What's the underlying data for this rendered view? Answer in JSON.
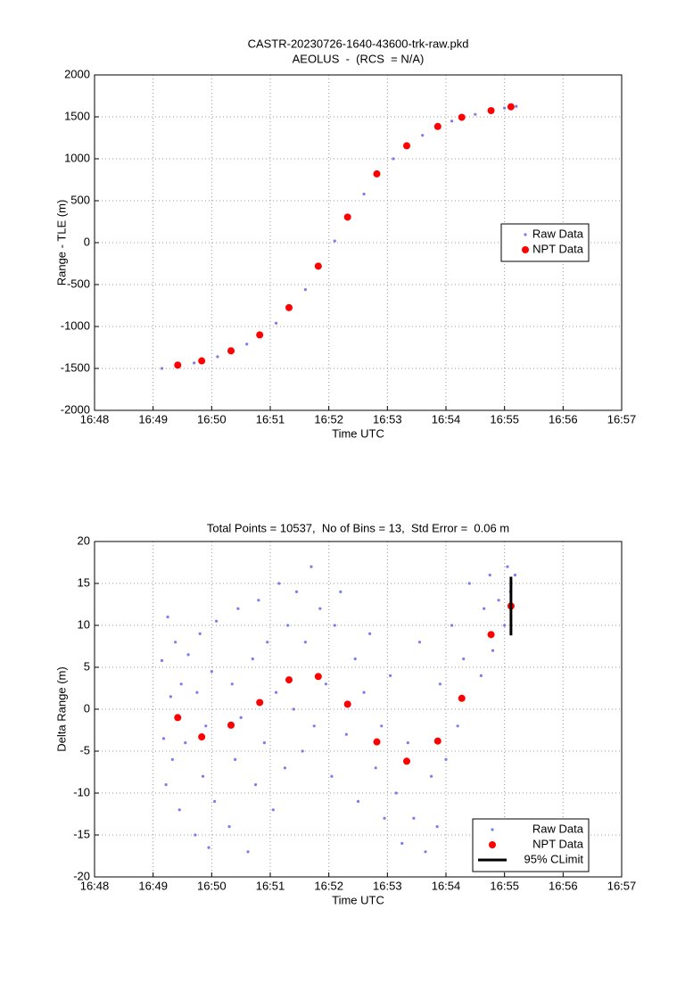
{
  "chart_data": [
    {
      "type": "scatter",
      "title": "CASTR-20230726-1640-43600-trk-raw.pkd",
      "subtitle": "AEOLUS  -  (RCS  = N/A)",
      "xlabel": "Time UTC",
      "ylabel": "Range - TLE (m)",
      "xlim": [
        1008,
        1017
      ],
      "xticks": [
        {
          "value": 1008,
          "label": "16:48"
        },
        {
          "value": 1009,
          "label": "16:49"
        },
        {
          "value": 1010,
          "label": "16:50"
        },
        {
          "value": 1011,
          "label": "16:51"
        },
        {
          "value": 1012,
          "label": "16:52"
        },
        {
          "value": 1013,
          "label": "16:53"
        },
        {
          "value": 1014,
          "label": "16:54"
        },
        {
          "value": 1015,
          "label": "16:55"
        },
        {
          "value": 1016,
          "label": "16:56"
        },
        {
          "value": 1017,
          "label": "16:57"
        }
      ],
      "ylim": [
        -2000,
        2000
      ],
      "yticks": [
        -2000,
        -1500,
        -1000,
        -500,
        0,
        500,
        1000,
        1500,
        2000
      ],
      "grid": true,
      "legend": "center right",
      "series": [
        {
          "name": "Raw Data",
          "color": "#7c7cf0",
          "marker": "dot",
          "x": [
            1009.15,
            1009.42,
            1009.7,
            1009.83,
            1010.1,
            1010.33,
            1010.6,
            1010.82,
            1011.1,
            1011.32,
            1011.6,
            1011.82,
            1012.1,
            1012.32,
            1012.6,
            1012.82,
            1013.1,
            1013.33,
            1013.6,
            1013.86,
            1014.1,
            1014.27,
            1014.5,
            1014.77,
            1015.0,
            1015.2
          ],
          "values": [
            -1500,
            -1470,
            -1435,
            -1410,
            -1360,
            -1295,
            -1210,
            -1105,
            -960,
            -790,
            -560,
            -300,
            20,
            300,
            580,
            810,
            1000,
            1150,
            1280,
            1380,
            1450,
            1490,
            1530,
            1575,
            1605,
            1625
          ]
        },
        {
          "name": "NPT Data",
          "color": "#ff0000",
          "marker": "circle",
          "x": [
            1009.42,
            1009.83,
            1010.33,
            1010.82,
            1011.32,
            1011.82,
            1012.32,
            1012.82,
            1013.33,
            1013.86,
            1014.27,
            1014.77,
            1015.11
          ],
          "values": [
            -1460,
            -1410,
            -1290,
            -1100,
            -775,
            -280,
            305,
            820,
            1155,
            1385,
            1495,
            1575,
            1620
          ]
        }
      ]
    },
    {
      "type": "scatter",
      "title": "Total Points = 10537,  No of Bins = 13,  Std Error =  0.06 m",
      "xlabel": "Time UTC",
      "ylabel": "Delta Range (m)",
      "xlim": [
        1008,
        1017
      ],
      "xticks": [
        {
          "value": 1008,
          "label": "16:48"
        },
        {
          "value": 1009,
          "label": "16:49"
        },
        {
          "value": 1010,
          "label": "16:50"
        },
        {
          "value": 1011,
          "label": "16:51"
        },
        {
          "value": 1012,
          "label": "16:52"
        },
        {
          "value": 1013,
          "label": "16:53"
        },
        {
          "value": 1014,
          "label": "16:54"
        },
        {
          "value": 1015,
          "label": "16:55"
        },
        {
          "value": 1016,
          "label": "16:56"
        },
        {
          "value": 1017,
          "label": "16:57"
        }
      ],
      "ylim": [
        -20,
        20
      ],
      "yticks": [
        -20,
        -15,
        -10,
        -5,
        0,
        5,
        10,
        15,
        20
      ],
      "grid": true,
      "legend": "lower right",
      "series": [
        {
          "name": "Raw Data",
          "color": "#7c7cf0",
          "marker": "dot",
          "x": [
            1009.15,
            1009.18,
            1009.22,
            1009.25,
            1009.3,
            1009.33,
            1009.38,
            1009.45,
            1009.48,
            1009.55,
            1009.6,
            1009.72,
            1009.75,
            1009.8,
            1009.85,
            1009.9,
            1009.95,
            1010.0,
            1010.05,
            1010.08,
            1010.3,
            1010.35,
            1010.4,
            1010.45,
            1010.5,
            1010.62,
            1010.7,
            1010.75,
            1010.8,
            1010.9,
            1010.95,
            1011.05,
            1011.1,
            1011.15,
            1011.25,
            1011.3,
            1011.4,
            1011.45,
            1011.55,
            1011.6,
            1011.7,
            1011.75,
            1011.85,
            1011.95,
            1012.05,
            1012.1,
            1012.2,
            1012.3,
            1012.45,
            1012.5,
            1012.6,
            1012.7,
            1012.8,
            1012.9,
            1012.95,
            1013.05,
            1013.15,
            1013.25,
            1013.35,
            1013.45,
            1013.55,
            1013.65,
            1013.75,
            1013.85,
            1013.9,
            1014.0,
            1014.1,
            1014.2,
            1014.3,
            1014.4,
            1014.6,
            1014.65,
            1014.75,
            1014.8,
            1014.9,
            1015.0,
            1015.05,
            1015.1,
            1015.18
          ],
          "values": [
            5.8,
            -3.5,
            -9,
            11,
            1.5,
            -6,
            8,
            -12,
            3,
            -4,
            6.5,
            -15,
            2,
            9,
            -8,
            -2,
            -16.5,
            4.5,
            -11,
            10.5,
            -14,
            3,
            -6,
            12,
            -1,
            -17,
            6,
            -9,
            13,
            -4,
            8,
            -12,
            2,
            15,
            -7,
            10,
            0,
            14,
            -5,
            8,
            17,
            -2,
            12,
            3,
            -8,
            10,
            14,
            -3,
            6,
            -11,
            2,
            9,
            -7,
            -2,
            -13,
            4,
            -10,
            -16,
            -4,
            -13,
            8,
            -17,
            -8,
            -14,
            3,
            -6,
            10,
            -2,
            6,
            15,
            4,
            12,
            16,
            7,
            13,
            10,
            17,
            14,
            16
          ]
        },
        {
          "name": "NPT Data",
          "color": "#ff0000",
          "marker": "circle",
          "x": [
            1009.42,
            1009.83,
            1010.33,
            1010.82,
            1011.32,
            1011.82,
            1012.32,
            1012.82,
            1013.33,
            1013.86,
            1014.27,
            1014.77,
            1015.11
          ],
          "values": [
            -1,
            -3.3,
            -1.9,
            0.8,
            3.5,
            3.9,
            0.6,
            -3.9,
            -6.2,
            -3.8,
            1.3,
            8.9,
            12.3
          ]
        },
        {
          "name": "95% CLimit",
          "color": "#000000",
          "marker": "errorbar",
          "x": [
            1015.11
          ],
          "values": [
            12.3
          ],
          "errors": [
            3.5
          ]
        }
      ]
    }
  ]
}
